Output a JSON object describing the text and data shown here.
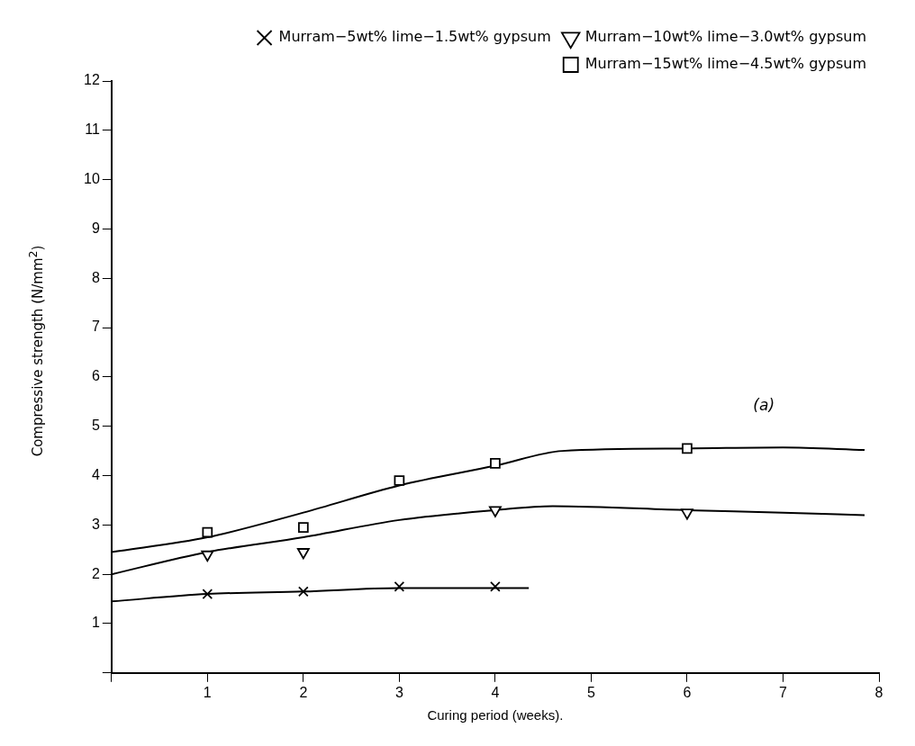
{
  "chart_data": {
    "type": "scatter",
    "xlabel": "Curing period (weeks).",
    "ylabel": "Compressive strength (N/mm$^{2}$)",
    "xlim": [
      0,
      8
    ],
    "xticks": [
      {
        "value": 0,
        "label": null
      },
      1,
      2,
      3,
      4,
      5,
      6,
      7,
      8
    ],
    "ylim": [
      0,
      12
    ],
    "yticks": [
      {
        "value": 0,
        "label": null
      },
      1,
      2,
      3,
      4,
      5,
      6,
      7,
      8,
      9,
      10,
      11,
      12
    ],
    "grid": false,
    "legend": "top right",
    "annotations": [
      "(a)"
    ],
    "series": [
      {
        "name": "Murram−5wt% lime−1.5wt% gypsum",
        "marker": "cross",
        "color": "#000000",
        "x": [
          1,
          2,
          3,
          4
        ],
        "values": [
          1.6,
          1.65,
          1.75,
          1.75
        ]
      },
      {
        "name": "Murram−10wt% lime−3.0wt% gypsum",
        "marker": "triangle",
        "color": "#000000",
        "x": [
          1,
          2,
          4,
          6
        ],
        "values": [
          2.4,
          2.45,
          3.3,
          3.25
        ]
      },
      {
        "name": "Murram−15wt% lime−4.5wt% gypsum",
        "marker": "square",
        "color": "#000000",
        "x": [
          1,
          2,
          3,
          4,
          6
        ],
        "values": [
          2.85,
          2.95,
          3.9,
          4.25,
          4.55
        ]
      },
      {
        "type": "line",
        "marker": "none",
        "color": "#000000",
        "x": [
          0,
          1,
          2,
          3,
          4,
          4.35
        ],
        "values": [
          1.45,
          1.6,
          1.65,
          1.72,
          1.72,
          1.72
        ]
      },
      {
        "type": "line",
        "marker": "none",
        "color": "#000000",
        "x": [
          0,
          1,
          2,
          3,
          4,
          4.6,
          6,
          7,
          7.85
        ],
        "values": [
          2.0,
          2.45,
          2.75,
          3.1,
          3.3,
          3.38,
          3.3,
          3.25,
          3.2
        ]
      },
      {
        "type": "line",
        "marker": "none",
        "color": "#000000",
        "x": [
          0,
          1,
          2,
          3,
          4,
          4.7,
          6,
          7,
          7.85
        ],
        "values": [
          2.45,
          2.75,
          3.25,
          3.8,
          4.2,
          4.5,
          4.55,
          4.57,
          4.52
        ]
      }
    ]
  }
}
